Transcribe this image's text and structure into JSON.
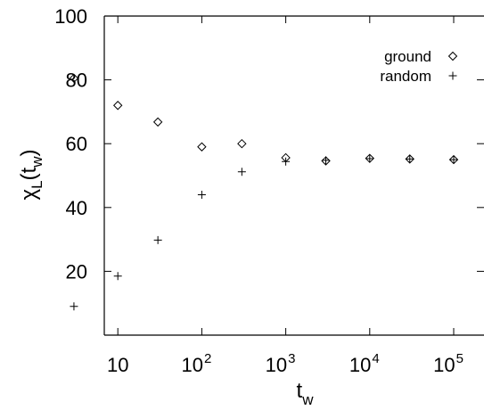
{
  "chart_data": {
    "type": "scatter",
    "title": "",
    "xlabel": {
      "base": "t",
      "sub": "w"
    },
    "ylabel": {
      "prefix": "χ",
      "sub1": "L",
      "mid": "(t",
      "sub2": "w",
      "suffix": ")"
    },
    "x_scale": "log",
    "xlim": [
      1,
      100000
    ],
    "ylim": [
      0,
      100
    ],
    "grid": false,
    "legend_position": "top-right",
    "x_ticks": [
      {
        "value": 10,
        "base": "10",
        "exp": ""
      },
      {
        "value": 100,
        "base": "10",
        "exp": "2"
      },
      {
        "value": 1000,
        "base": "10",
        "exp": "3"
      },
      {
        "value": 10000,
        "base": "10",
        "exp": "4"
      },
      {
        "value": 100000,
        "base": "10",
        "exp": "5"
      }
    ],
    "y_ticks": [
      {
        "value": 20,
        "label": "20"
      },
      {
        "value": 40,
        "label": "40"
      },
      {
        "value": 60,
        "label": "60"
      },
      {
        "value": 80,
        "label": "80"
      },
      {
        "value": 100,
        "label": "100"
      }
    ],
    "series": [
      {
        "name": "ground",
        "marker": "diamond",
        "color": "#000000",
        "points": [
          [
            3,
            80.5
          ],
          [
            10,
            72
          ],
          [
            30,
            66.8
          ],
          [
            100,
            59
          ],
          [
            300,
            60
          ],
          [
            1000,
            55.6
          ],
          [
            3000,
            54.6
          ],
          [
            10000,
            55.4
          ],
          [
            30000,
            55.2
          ],
          [
            100000,
            55
          ]
        ]
      },
      {
        "name": "random",
        "marker": "plus",
        "color": "#000000",
        "points": [
          [
            3,
            9
          ],
          [
            10,
            18.5
          ],
          [
            30,
            29.8
          ],
          [
            100,
            44
          ],
          [
            300,
            51.2
          ],
          [
            1000,
            54.4
          ],
          [
            3000,
            54.8
          ],
          [
            10000,
            55.3
          ],
          [
            30000,
            55.2
          ],
          [
            100000,
            55
          ]
        ]
      }
    ]
  }
}
